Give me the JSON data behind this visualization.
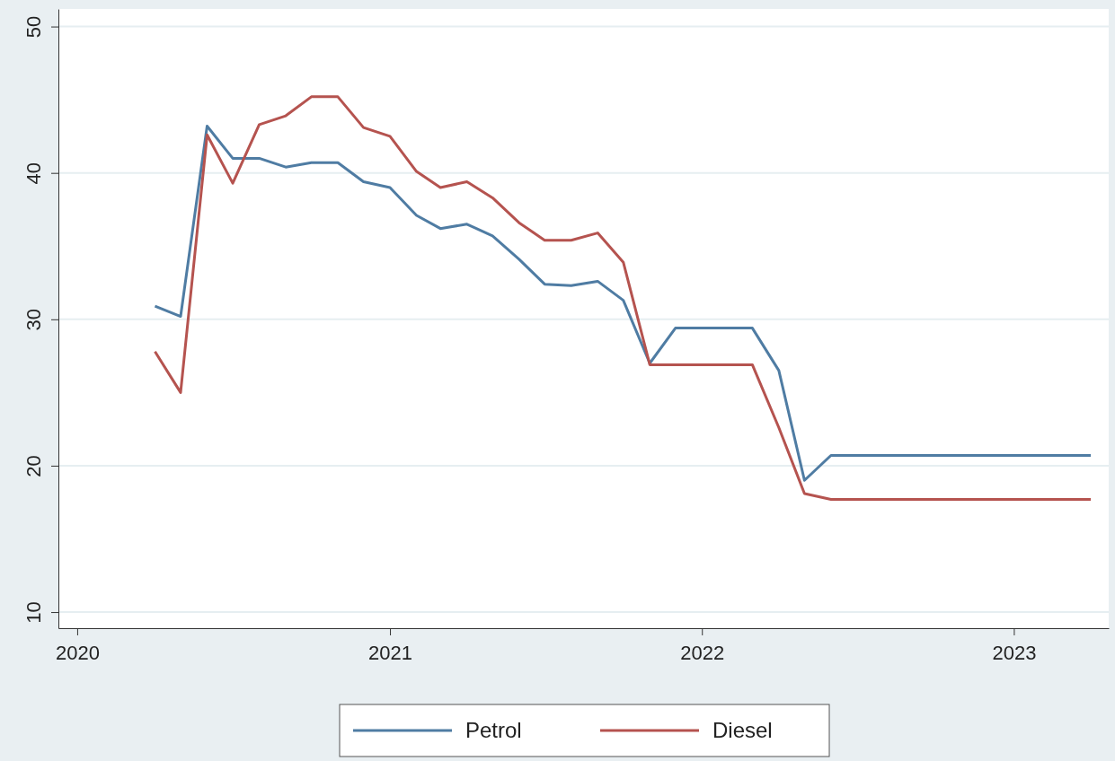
{
  "chart_data": {
    "type": "line",
    "x": [
      "2020-04",
      "2020-05",
      "2020-06",
      "2020-07",
      "2020-08",
      "2020-09",
      "2020-10",
      "2020-11",
      "2020-12",
      "2021-01",
      "2021-02",
      "2021-03",
      "2021-04",
      "2021-05",
      "2021-06",
      "2021-07",
      "2021-08",
      "2021-09",
      "2021-10",
      "2021-11",
      "2021-12",
      "2022-01",
      "2022-02",
      "2022-03",
      "2022-04",
      "2022-05",
      "2022-06",
      "2022-07",
      "2022-08",
      "2022-09",
      "2022-10",
      "2022-11",
      "2022-12",
      "2023-01",
      "2023-02",
      "2023-03",
      "2023-04"
    ],
    "series": [
      {
        "name": "Petrol",
        "color": "#4f7ca3",
        "values": [
          30.9,
          30.2,
          43.2,
          41.0,
          41.0,
          40.4,
          40.7,
          40.7,
          39.4,
          39.0,
          37.1,
          36.2,
          36.5,
          35.7,
          34.1,
          32.4,
          32.3,
          32.6,
          31.3,
          27.0,
          29.4,
          29.4,
          29.4,
          29.4,
          26.5,
          19.0,
          20.7,
          20.7,
          20.7,
          20.7,
          20.7,
          20.7,
          20.7,
          20.7,
          20.7,
          20.7,
          20.7
        ]
      },
      {
        "name": "Diesel",
        "color": "#b5534f",
        "values": [
          27.8,
          25.0,
          42.6,
          39.3,
          43.3,
          43.9,
          45.2,
          45.2,
          43.1,
          42.5,
          40.1,
          39.0,
          39.4,
          38.3,
          36.6,
          35.4,
          35.4,
          35.9,
          33.9,
          26.9,
          26.9,
          26.9,
          26.9,
          26.9,
          22.6,
          18.1,
          17.7,
          17.7,
          17.7,
          17.7,
          17.7,
          17.7,
          17.7,
          17.7,
          17.7,
          17.7,
          17.7
        ]
      }
    ],
    "xlim": [
      "2019-12-10",
      "2023-04-22"
    ],
    "xticks": [
      {
        "value": "2020-01-01",
        "label": "2020"
      },
      {
        "value": "2021-01-01",
        "label": "2021"
      },
      {
        "value": "2022-01-01",
        "label": "2022"
      },
      {
        "value": "2023-01-01",
        "label": "2023"
      }
    ],
    "ylim": [
      8.9,
      51.2
    ],
    "yticks": [
      10,
      20,
      30,
      40,
      50
    ],
    "grid": "y",
    "legend": "bottom",
    "line_style": "solid"
  }
}
